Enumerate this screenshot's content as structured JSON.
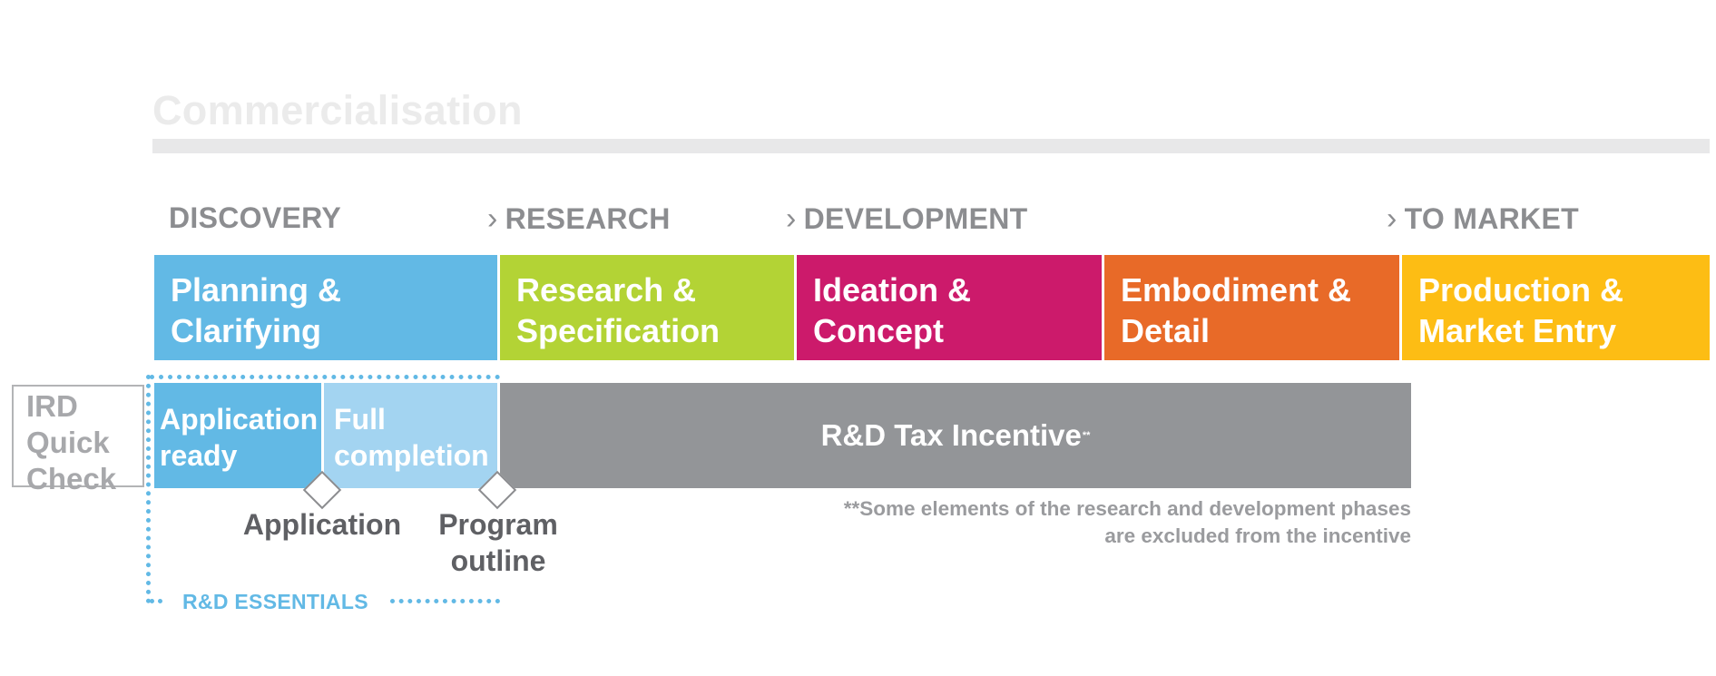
{
  "title": "Commercialisation",
  "phases": [
    "DISCOVERY",
    "RESEARCH",
    "DEVELOPMENT",
    "TO MARKET"
  ],
  "stages": [
    {
      "line1": "Planning &",
      "line2": "Clarifying",
      "color": "#62b9e5"
    },
    {
      "line1": "Research &",
      "line2": "Specification",
      "color": "#b3d335"
    },
    {
      "line1": "Ideation &",
      "line2": "Concept",
      "color": "#cc1a6b"
    },
    {
      "line1": "Embodiment &",
      "line2": "Detail",
      "color": "#e86a28"
    },
    {
      "line1": "Production &",
      "line2": "Market Entry",
      "color": "#fdbd14"
    }
  ],
  "ird": {
    "line1": "IRD",
    "line2": "Quick",
    "line3": "Check"
  },
  "substages": [
    {
      "line1": "Application",
      "line2": "ready",
      "color": "#62b9e5"
    },
    {
      "line1": "Full",
      "line2": "completion",
      "color": "#a3d4f1"
    }
  ],
  "rd_tax": {
    "label": "R&D Tax Incentive",
    "marker": "**",
    "color": "#939598"
  },
  "milestones": [
    {
      "line1": "Application",
      "line2": ""
    },
    {
      "line1": "Program",
      "line2": "outline"
    }
  ],
  "footnote": {
    "line1": "**Some elements of the research and development phases",
    "line2": "are excluded from the incentive"
  },
  "essentials_label": "R&D ESSENTIALS"
}
